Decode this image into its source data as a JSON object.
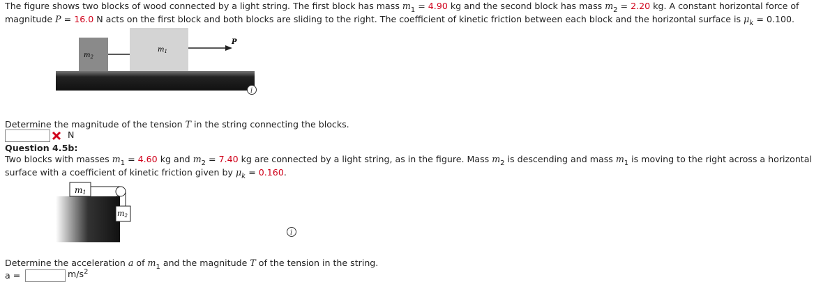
{
  "problem_a": {
    "text_runs": [
      "The figure shows two blocks of wood connected by a light string. The first block has mass ",
      "m",
      "1",
      " = ",
      "4.90",
      " kg and the second block has mass ",
      "m",
      "2",
      " = ",
      "2.20",
      " kg. A constant horizontal force of magnitude ",
      "P",
      " = ",
      "16.0",
      " N acts on the first block and both blocks are sliding to the right. The coefficient of kinetic friction between each block and the horizontal surface is ",
      "μ",
      "k",
      " = ",
      "0.100",
      "."
    ],
    "figure_labels": {
      "block_2": "m",
      "block_2_sub": "2",
      "block_1": "m",
      "block_1_sub": "1",
      "force": "P"
    },
    "question_runs": [
      "Determine the magnitude of the tension ",
      "T",
      " in the string connecting the blocks."
    ],
    "answer_unit": "N"
  },
  "problem_b": {
    "heading": "Question 4.5b:",
    "text_runs": [
      "Two blocks with masses ",
      "m",
      "1",
      " = ",
      "4.60",
      " kg and ",
      "m",
      "2",
      " = ",
      "7.40",
      " kg are connected by a light string, as in the figure. Mass ",
      "m",
      "2",
      " is descending and mass ",
      "m",
      "1",
      " is moving to the right across a horizontal surface with a coefficient of kinetic friction given by ",
      "μ",
      "k",
      " = ",
      "0.160",
      "."
    ],
    "figure_labels": {
      "block_1": "m",
      "block_1_sub": "1",
      "block_2": "m",
      "block_2_sub": "2"
    },
    "question_runs": [
      "Determine the acceleration ",
      "a",
      " of ",
      "m",
      "1",
      " and the magnitude ",
      "T",
      " of the tension in the string."
    ],
    "answer_label": "a =",
    "answer_unit": "m/s",
    "answer_unit_sup": "2"
  }
}
